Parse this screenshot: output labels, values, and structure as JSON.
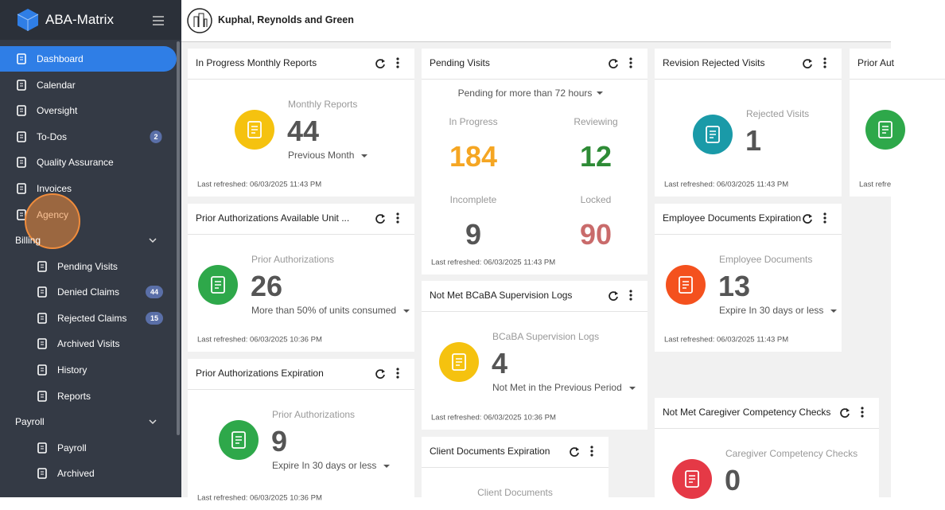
{
  "app": {
    "name": "ABA-Matrix"
  },
  "header": {
    "company": "Kuphal, Reynolds and Green"
  },
  "sidebar": {
    "items": [
      {
        "label": "Dashboard",
        "active": true
      },
      {
        "label": "Calendar"
      },
      {
        "label": "Oversight"
      },
      {
        "label": "To-Dos",
        "badge": 2
      },
      {
        "label": "Quality Assurance"
      },
      {
        "label": "Invoices"
      },
      {
        "label": "Agency",
        "highlight": true
      }
    ],
    "sections": [
      {
        "label": "Billing",
        "items": [
          {
            "label": "Pending Visits"
          },
          {
            "label": "Denied Claims",
            "badge": 44
          },
          {
            "label": "Rejected Claims",
            "badge": 15
          },
          {
            "label": "Archived Visits"
          },
          {
            "label": "History"
          },
          {
            "label": "Reports"
          }
        ]
      },
      {
        "label": "Payroll",
        "items": [
          {
            "label": "Payroll"
          },
          {
            "label": "Archived"
          }
        ]
      }
    ]
  },
  "widgets": [
    {
      "title": "In Progress Monthly Reports",
      "label": "Monthly Reports",
      "value": 44,
      "filter": "Previous Month",
      "refreshed": "Last refreshed: 06/03/2025 11:43 PM",
      "icon_color": "#f5c20f"
    },
    {
      "title": "Prior Authorizations Available Unit ...",
      "label": "Prior Authorizations",
      "value": 26,
      "filter": "More than 50% of units consumed",
      "refreshed": "Last refreshed: 06/03/2025 10:36 PM",
      "icon_color": "#2ea84a"
    },
    {
      "title": "Prior Authorizations Expiration",
      "label": "Prior Authorizations",
      "value": 9,
      "filter": "Expire In 30 days or less",
      "refreshed": "Last refreshed: 06/03/2025 10:36 PM",
      "icon_color": "#2ea84a"
    },
    {
      "title": "Pending Visits",
      "dropdown": "Pending for more than 72 hours",
      "stats": [
        {
          "label": "In Progress",
          "value": 184,
          "color": "#f5a623"
        },
        {
          "label": "Reviewing",
          "value": 12,
          "color": "#2e8b36"
        },
        {
          "label": "Incomplete",
          "value": 9,
          "color": "#555555"
        },
        {
          "label": "Locked",
          "value": 90,
          "color": "#c96b6b"
        }
      ],
      "refreshed": "Last refreshed: 06/03/2025 11:43 PM"
    },
    {
      "title": "Not Met BCaBA Supervision Logs",
      "label": "BCaBA Supervision Logs",
      "value": 4,
      "filter": "Not Met in the Previous Period",
      "refreshed": "Last refreshed: 06/03/2025 10:36 PM",
      "icon_color": "#f5c20f"
    },
    {
      "title": "Client Documents Expiration",
      "label": "Client Documents"
    },
    {
      "title": "Revision Rejected Visits",
      "label": "Rejected Visits",
      "value": 1,
      "refreshed": "Last refreshed: 06/03/2025 11:43 PM",
      "icon_color": "#1a9aa8"
    },
    {
      "title": "Employee Documents Expiration",
      "label": "Employee Documents",
      "value": 13,
      "filter": "Expire In 30 days or less",
      "refreshed": "Last refreshed: 06/03/2025 11:43 PM",
      "icon_color": "#f4511e"
    },
    {
      "title": "Not Met Caregiver Competency Checks",
      "label": "Caregiver Competency Checks",
      "value": 0,
      "icon_color": "#e53946"
    },
    {
      "title": "Prior Aut",
      "refreshed": "Last refre",
      "icon_color": "#2ea84a"
    }
  ]
}
